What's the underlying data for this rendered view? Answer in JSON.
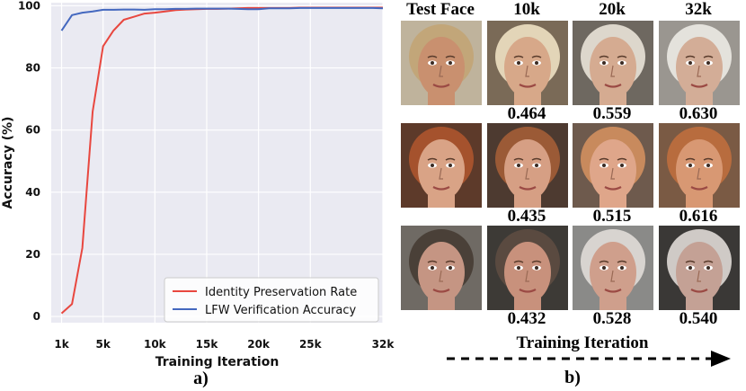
{
  "chart_data": {
    "type": "line",
    "xlabel": "Training Iteration",
    "ylabel": "Accuracy (%)",
    "xlim": [
      0,
      32
    ],
    "ylim": [
      -2,
      101
    ],
    "xticks": [
      1,
      5,
      10,
      15,
      20,
      25,
      32
    ],
    "xtick_labels": [
      "1k",
      "5k",
      "10k",
      "15k",
      "20k",
      "25k",
      "32k"
    ],
    "yticks": [
      0,
      20,
      40,
      60,
      80,
      100
    ],
    "ytick_labels": [
      "0",
      "20",
      "40",
      "60",
      "80",
      "100"
    ],
    "grid": true,
    "legend_position": "bottom-right",
    "series": [
      {
        "name": "Identity Preservation Rate",
        "color": "#e8473f",
        "x": [
          1,
          2,
          3,
          4,
          5,
          6,
          7,
          8,
          9,
          10,
          11,
          12,
          13,
          14,
          15,
          16,
          17,
          18,
          19,
          20,
          21,
          22,
          23,
          24,
          25,
          26,
          27,
          28,
          29,
          30,
          31,
          32
        ],
        "y": [
          1,
          4,
          22,
          66,
          87,
          92,
          95.5,
          96.5,
          97.5,
          97.8,
          98.2,
          98.6,
          98.8,
          98.9,
          99,
          99,
          99.1,
          99.2,
          99.3,
          99.3,
          99.3,
          99.3,
          99.3,
          99.4,
          99.4,
          99.4,
          99.4,
          99.4,
          99.4,
          99.4,
          99.4,
          99.4
        ]
      },
      {
        "name": "LFW Verification Accuracy",
        "color": "#4468bf",
        "x": [
          1,
          2,
          3,
          4,
          5,
          6,
          7,
          8,
          9,
          10,
          11,
          12,
          13,
          14,
          15,
          16,
          17,
          18,
          19,
          20,
          21,
          22,
          23,
          24,
          25,
          26,
          27,
          28,
          29,
          30,
          31,
          32
        ],
        "y": [
          92,
          97,
          97.8,
          98.2,
          98.7,
          98.7,
          98.8,
          98.8,
          98.7,
          98.9,
          98.9,
          99,
          99,
          99.1,
          99.1,
          99.1,
          99.1,
          99,
          98.9,
          98.9,
          99.2,
          99.2,
          99.2,
          99.3,
          99.3,
          99.3,
          99.3,
          99.3,
          99.3,
          99.3,
          99.3,
          99.2
        ]
      }
    ]
  },
  "panel_labels": {
    "a": "a)",
    "b": "b)"
  },
  "face_grid": {
    "column_headers": [
      "Test Face",
      "10k",
      "20k",
      "32k"
    ],
    "rows": [
      {
        "scores": [
          "0.464",
          "0.559",
          "0.630"
        ],
        "tones": [
          "#c9906f",
          "#d7a889",
          "#d5ab91",
          "#d3ad97"
        ],
        "hair": [
          "#c2a679",
          "#e3d5b8",
          "#ddd7cc",
          "#e4e2dc"
        ],
        "bg": [
          "#bfb39c",
          "#7a6a57",
          "#6e6860",
          "#9a9690"
        ]
      },
      {
        "scores": [
          "0.435",
          "0.515",
          "0.616"
        ],
        "tones": [
          "#d9a386",
          "#d69f84",
          "#dfa68a",
          "#d89873"
        ],
        "hair": [
          "#a5522d",
          "#9b5a36",
          "#c88a5d",
          "#b86c3e"
        ],
        "bg": [
          "#5d3a2a",
          "#4d3a30",
          "#6e5a4d",
          "#7a5a44"
        ]
      },
      {
        "scores": [
          "0.432",
          "0.528",
          "0.540"
        ],
        "tones": [
          "#c59583",
          "#c8917c",
          "#cf9f8c",
          "#c4a195"
        ],
        "hair": [
          "#4a4038",
          "#5a4a40",
          "#d8d4d0",
          "#cfcac6"
        ],
        "bg": [
          "#6f6a64",
          "#3d3a36",
          "#8a8a88",
          "#3a3836"
        ]
      }
    ],
    "x_caption": "Training Iteration"
  }
}
